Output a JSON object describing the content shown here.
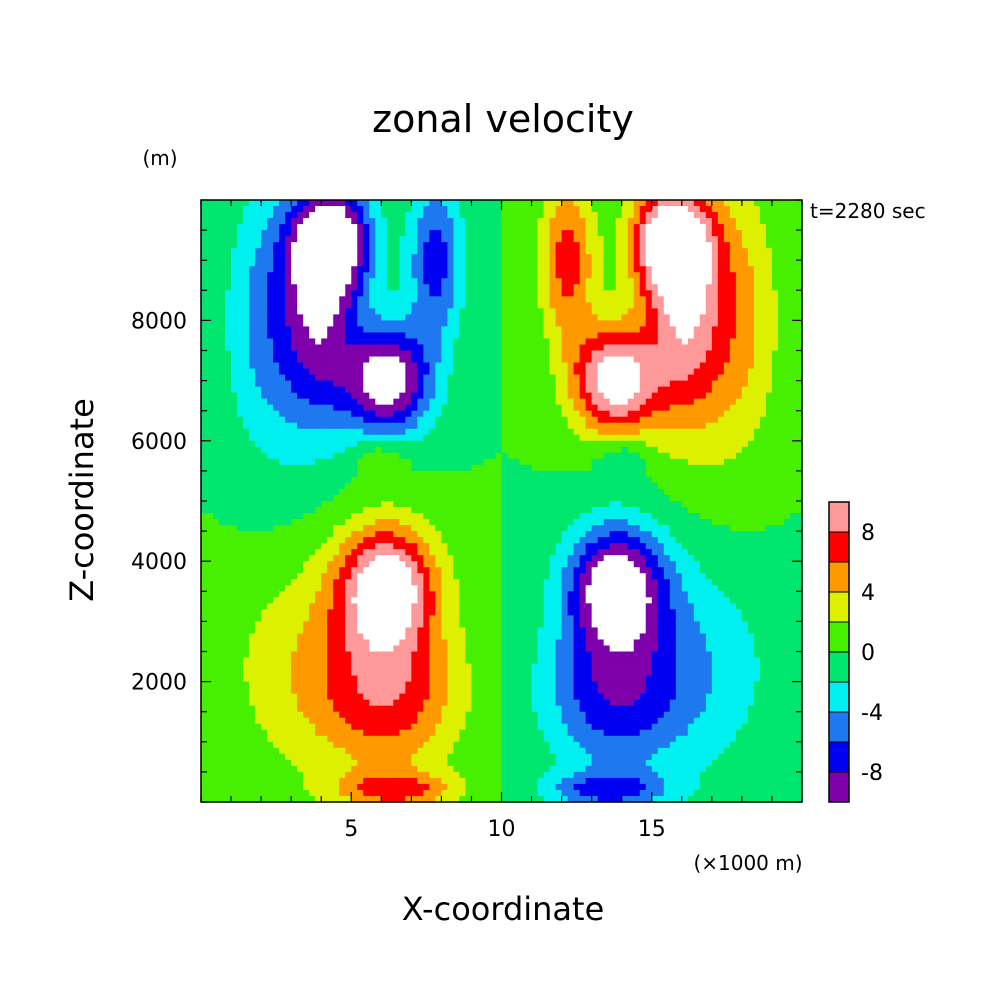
{
  "chart_data": {
    "type": "heatmap",
    "title": "zonal velocity",
    "xlabel": "X-coordinate",
    "ylabel": "Z-coordinate",
    "x_unit": "(×1000 m)",
    "y_unit": "(m)",
    "time_label": "t=2280 sec",
    "xlim": [
      0,
      20
    ],
    "ylim": [
      0,
      10000
    ],
    "x_ticks": [
      5,
      10,
      15
    ],
    "x_tick_labels": [
      "5",
      "10",
      "15"
    ],
    "y_ticks": [
      2000,
      4000,
      6000,
      8000
    ],
    "y_tick_labels": [
      "2000",
      "4000",
      "6000",
      "8000"
    ],
    "grid": false,
    "colorbar": {
      "levels": [
        -10,
        -8,
        -6,
        -4,
        -2,
        0,
        2,
        4,
        6,
        8,
        10
      ],
      "colors": [
        "#7d00aa",
        "#0000f0",
        "#1e78f0",
        "#00f0f0",
        "#00e66e",
        "#46f000",
        "#dcf000",
        "#ff9900",
        "#ff0000",
        "#ff9999"
      ],
      "over_color": "#ffffff",
      "tick_labels": [
        "8",
        "4",
        "0",
        "-4",
        "-8"
      ]
    },
    "features": [
      {
        "label": "positive jet core (lower left)",
        "x": 6.2,
        "z": 3500,
        "peak_u": 11
      },
      {
        "label": "negative jet core (lower right)",
        "x": 13.8,
        "z": 3500,
        "peak_u": -11
      },
      {
        "label": "negative lobe (upper left)",
        "x": 6.3,
        "z": 7000,
        "peak_u": -11
      },
      {
        "label": "positive lobe (upper right)",
        "x": 13.7,
        "z": 7000,
        "peak_u": 11
      }
    ]
  }
}
